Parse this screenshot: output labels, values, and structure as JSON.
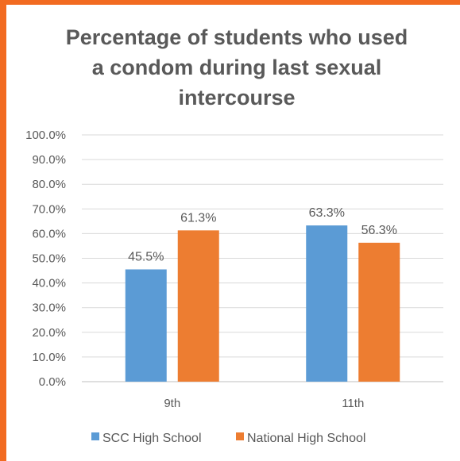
{
  "chart_data": {
    "type": "bar",
    "title_lines": [
      "Percentage of students who used",
      "a condom during last sexual",
      "intercourse"
    ],
    "categories": [
      "9th",
      "11th"
    ],
    "series": [
      {
        "name": "SCC High School",
        "values": [
          45.5,
          63.3
        ],
        "labels": [
          "45.5%",
          "63.3%"
        ],
        "color": "#5b9bd5"
      },
      {
        "name": "National High School",
        "values": [
          61.3,
          56.3
        ],
        "labels": [
          "61.3%",
          "56.3%"
        ],
        "color": "#ed7d31"
      }
    ],
    "ylim": [
      0,
      100
    ],
    "yticks": [
      0,
      10,
      20,
      30,
      40,
      50,
      60,
      70,
      80,
      90,
      100
    ],
    "ytick_labels": [
      "0.0%",
      "10.0%",
      "20.0%",
      "30.0%",
      "40.0%",
      "50.0%",
      "60.0%",
      "70.0%",
      "80.0%",
      "90.0%",
      "100.0%"
    ],
    "grid": true,
    "legend": "bottom",
    "frame_color": "#f26b21"
  }
}
